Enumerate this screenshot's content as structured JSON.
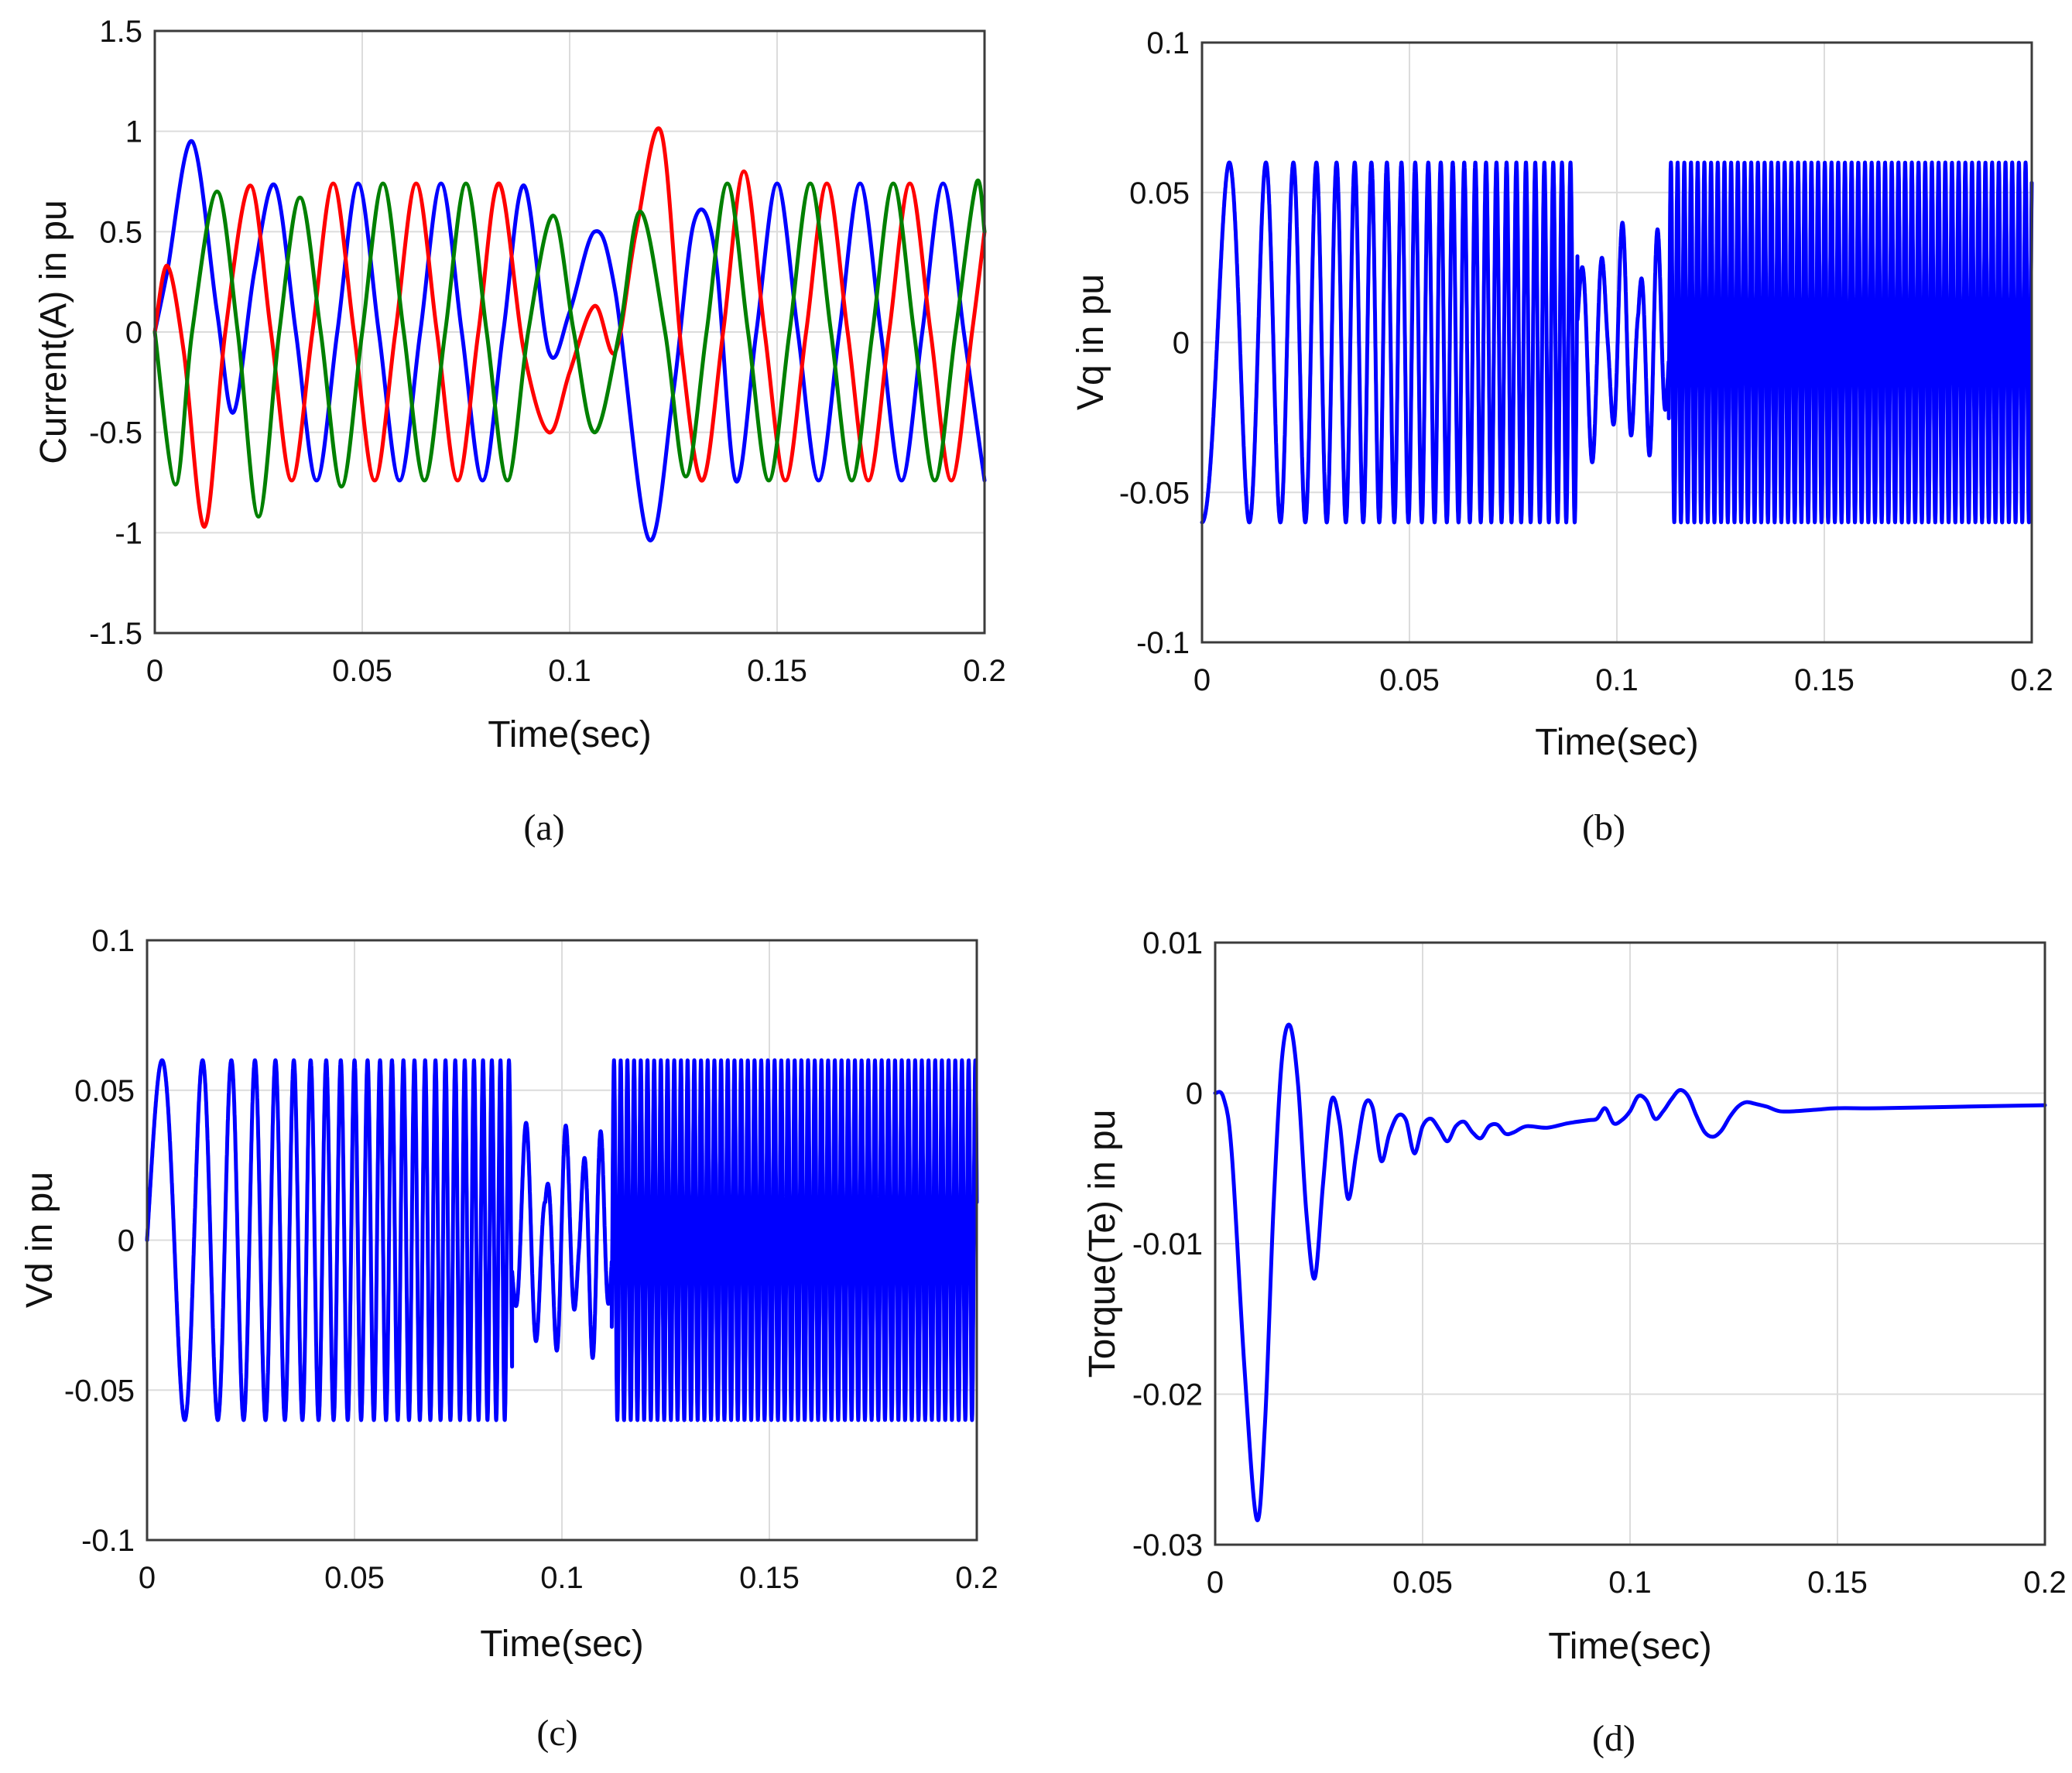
{
  "chart_data": [
    {
      "id": "a",
      "type": "line",
      "caption": "(a)",
      "xlabel": "Time(sec)",
      "ylabel": "Current(A) in pu",
      "xlim": [
        0,
        0.2
      ],
      "ylim": [
        -1.5,
        1.5
      ],
      "xticks": [
        0,
        0.05,
        0.1,
        0.15,
        0.2
      ],
      "xtick_labels": [
        "0",
        "0.05",
        "0.1",
        "0.15",
        "0.2"
      ],
      "yticks": [
        -1.5,
        -1,
        -0.5,
        0,
        0.5,
        1,
        1.5
      ],
      "ytick_labels": [
        "-1.5",
        "-1",
        "-0.5",
        "0",
        "0.5",
        "1",
        "1.5"
      ],
      "grid": true,
      "series": [
        {
          "name": "phase-blue",
          "color": "#0000ff",
          "x": [
            0,
            0.003,
            0.009,
            0.015,
            0.019,
            0.024,
            0.029,
            0.034,
            0.039,
            0.044,
            0.049,
            0.054,
            0.059,
            0.064,
            0.069,
            0.074,
            0.079,
            0.084,
            0.089,
            0.095,
            0.1,
            0.106,
            0.111,
            0.119,
            0.125,
            0.13,
            0.135,
            0.14,
            0.145,
            0.15,
            0.155,
            0.16,
            0.165,
            0.17,
            0.175,
            0.18,
            0.185,
            0.19,
            0.195,
            0.2
          ],
          "values": [
            0.0,
            0.3,
            0.95,
            0.1,
            -0.4,
            0.3,
            0.73,
            0.0,
            -0.74,
            0.0,
            0.74,
            0.0,
            -0.74,
            0.0,
            0.74,
            0.0,
            -0.74,
            0.0,
            0.73,
            -0.1,
            0.1,
            0.5,
            0.2,
            -1.03,
            -0.3,
            0.55,
            0.4,
            -0.74,
            0.0,
            0.74,
            0.0,
            -0.74,
            0.0,
            0.74,
            0.0,
            -0.74,
            0.0,
            0.74,
            0.0,
            -0.74
          ]
        },
        {
          "name": "phase-red",
          "color": "#ff0000",
          "x": [
            0,
            0.003,
            0.007,
            0.012,
            0.017,
            0.023,
            0.028,
            0.033,
            0.038,
            0.043,
            0.048,
            0.053,
            0.058,
            0.063,
            0.068,
            0.073,
            0.078,
            0.083,
            0.089,
            0.095,
            0.1,
            0.106,
            0.111,
            0.116,
            0.122,
            0.127,
            0.132,
            0.137,
            0.142,
            0.147,
            0.152,
            0.157,
            0.162,
            0.167,
            0.172,
            0.177,
            0.182,
            0.187,
            0.192,
            0.197,
            0.2
          ],
          "values": [
            0.0,
            0.33,
            -0.1,
            -0.97,
            0.0,
            0.73,
            0.0,
            -0.74,
            0.0,
            0.74,
            0.0,
            -0.74,
            0.0,
            0.74,
            0.0,
            -0.74,
            0.0,
            0.74,
            -0.1,
            -0.5,
            -0.2,
            0.13,
            -0.1,
            0.5,
            1.0,
            -0.1,
            -0.74,
            0.0,
            0.8,
            0.0,
            -0.74,
            0.0,
            0.74,
            0.0,
            -0.74,
            0.0,
            0.74,
            0.0,
            -0.74,
            0.0,
            0.5
          ]
        },
        {
          "name": "phase-green",
          "color": "#008000",
          "x": [
            0,
            0.005,
            0.009,
            0.015,
            0.02,
            0.025,
            0.03,
            0.035,
            0.04,
            0.045,
            0.05,
            0.055,
            0.06,
            0.065,
            0.07,
            0.075,
            0.08,
            0.085,
            0.09,
            0.096,
            0.101,
            0.106,
            0.112,
            0.117,
            0.123,
            0.128,
            0.133,
            0.138,
            0.143,
            0.148,
            0.153,
            0.158,
            0.163,
            0.168,
            0.173,
            0.178,
            0.183,
            0.188,
            0.193,
            0.198,
            0.2
          ],
          "values": [
            0.0,
            -0.76,
            0.0,
            0.7,
            0.0,
            -0.92,
            0.0,
            0.67,
            0.0,
            -0.77,
            0.0,
            0.74,
            0.0,
            -0.74,
            0.0,
            0.74,
            0.0,
            -0.74,
            0.0,
            0.58,
            0.0,
            -0.5,
            0.0,
            0.6,
            0.0,
            -0.72,
            0.0,
            0.74,
            0.0,
            -0.74,
            0.0,
            0.74,
            0.0,
            -0.74,
            0.0,
            0.74,
            0.0,
            -0.74,
            0.0,
            0.74,
            0.5
          ]
        }
      ]
    },
    {
      "id": "b",
      "type": "line",
      "caption": "(b)",
      "xlabel": "Time(sec)",
      "ylabel": "Vq in pu",
      "xlim": [
        0,
        0.2
      ],
      "ylim": [
        -0.1,
        0.1
      ],
      "xticks": [
        0,
        0.05,
        0.1,
        0.15,
        0.2
      ],
      "xtick_labels": [
        "0",
        "0.05",
        "0.1",
        "0.15",
        "0.2"
      ],
      "yticks": [
        -0.1,
        -0.05,
        0,
        0.05,
        0.1
      ],
      "ytick_labels": [
        "-0.1",
        "-0.05",
        "0",
        "0.05",
        "0.1"
      ],
      "grid": true,
      "signal": {
        "color": "#0000ff",
        "initial_phase": "minimum",
        "segments": [
          {
            "t_start": 0.0,
            "t_end": 0.0905,
            "freq_start_hz": 60,
            "freq_end_hz": 500,
            "amplitude": 0.06
          },
          {
            "t_start": 0.0905,
            "t_end": 0.1125,
            "freq_start_hz": 180,
            "freq_end_hz": 260,
            "amplitude": 0.04,
            "transient": true
          },
          {
            "t_start": 0.1125,
            "t_end": 0.2,
            "freq_start_hz": 620,
            "freq_end_hz": 620,
            "amplitude": 0.06
          }
        ]
      }
    },
    {
      "id": "c",
      "type": "line",
      "caption": "(c)",
      "xlabel": "Time(sec)",
      "ylabel": "Vd in pu",
      "xlim": [
        0,
        0.2
      ],
      "ylim": [
        -0.1,
        0.1
      ],
      "xticks": [
        0,
        0.05,
        0.1,
        0.15,
        0.2
      ],
      "xtick_labels": [
        "0",
        "0.05",
        "0.1",
        "0.15",
        "0.2"
      ],
      "yticks": [
        -0.1,
        -0.05,
        0,
        0.05,
        0.1
      ],
      "ytick_labels": [
        "-0.1",
        "-0.05",
        "0",
        "0.05",
        "0.1"
      ],
      "grid": true,
      "signal": {
        "color": "#0000ff",
        "initial_phase": "zero",
        "segments": [
          {
            "t_start": 0.0,
            "t_end": 0.088,
            "freq_start_hz": 60,
            "freq_end_hz": 500,
            "amplitude": 0.06
          },
          {
            "t_start": 0.088,
            "t_end": 0.112,
            "freq_start_hz": 180,
            "freq_end_hz": 260,
            "amplitude": 0.04,
            "transient": true
          },
          {
            "t_start": 0.112,
            "t_end": 0.2,
            "freq_start_hz": 620,
            "freq_end_hz": 620,
            "amplitude": 0.06
          }
        ]
      }
    },
    {
      "id": "d",
      "type": "line",
      "caption": "(d)",
      "xlabel": "Time(sec)",
      "ylabel": "Torque(Te) in pu",
      "xlim": [
        0,
        0.2
      ],
      "ylim": [
        -0.03,
        0.01
      ],
      "xticks": [
        0,
        0.05,
        0.1,
        0.15,
        0.2
      ],
      "xtick_labels": [
        "0",
        "0.05",
        "0.1",
        "0.15",
        "0.2"
      ],
      "yticks": [
        -0.03,
        -0.02,
        -0.01,
        0,
        0.01
      ],
      "ytick_labels": [
        "-0.03",
        "-0.02",
        "-0.01",
        "0",
        "0.01"
      ],
      "grid": true,
      "series": [
        {
          "name": "torque",
          "color": "#0000ff",
          "x": [
            0,
            0.002,
            0.004,
            0.007,
            0.01,
            0.012,
            0.014,
            0.016,
            0.018,
            0.02,
            0.022,
            0.024,
            0.026,
            0.028,
            0.03,
            0.032,
            0.034,
            0.036,
            0.038,
            0.04,
            0.042,
            0.044,
            0.046,
            0.048,
            0.05,
            0.052,
            0.054,
            0.056,
            0.058,
            0.06,
            0.062,
            0.064,
            0.066,
            0.068,
            0.07,
            0.072,
            0.075,
            0.08,
            0.085,
            0.09,
            0.092,
            0.094,
            0.096,
            0.098,
            0.1,
            0.102,
            0.104,
            0.106,
            0.108,
            0.11,
            0.112,
            0.114,
            0.116,
            0.118,
            0.12,
            0.122,
            0.124,
            0.126,
            0.128,
            0.13,
            0.133,
            0.136,
            0.14,
            0.145,
            0.15,
            0.16,
            0.18,
            0.2
          ],
          "values": [
            0.0,
            -0.0003,
            -0.004,
            -0.018,
            -0.0283,
            -0.022,
            -0.008,
            0.002,
            0.0045,
            0.0005,
            -0.008,
            -0.0123,
            -0.006,
            -0.0005,
            -0.002,
            -0.007,
            -0.004,
            -0.0008,
            -0.001,
            -0.0045,
            -0.0027,
            -0.0015,
            -0.0018,
            -0.004,
            -0.0022,
            -0.0017,
            -0.0024,
            -0.0032,
            -0.0022,
            -0.0019,
            -0.0026,
            -0.003,
            -0.0022,
            -0.0021,
            -0.0027,
            -0.0026,
            -0.0022,
            -0.0023,
            -0.002,
            -0.0018,
            -0.0017,
            -0.001,
            -0.002,
            -0.0018,
            -0.0012,
            -0.0002,
            -0.0005,
            -0.0017,
            -0.0012,
            -0.0004,
            0.0002,
            -0.0002,
            -0.0015,
            -0.0026,
            -0.0029,
            -0.0025,
            -0.0016,
            -0.0009,
            -0.0006,
            -0.0007,
            -0.0009,
            -0.0012,
            -0.0012,
            -0.0011,
            -0.001,
            -0.001,
            -0.0009,
            -0.0008
          ]
        }
      ]
    }
  ]
}
